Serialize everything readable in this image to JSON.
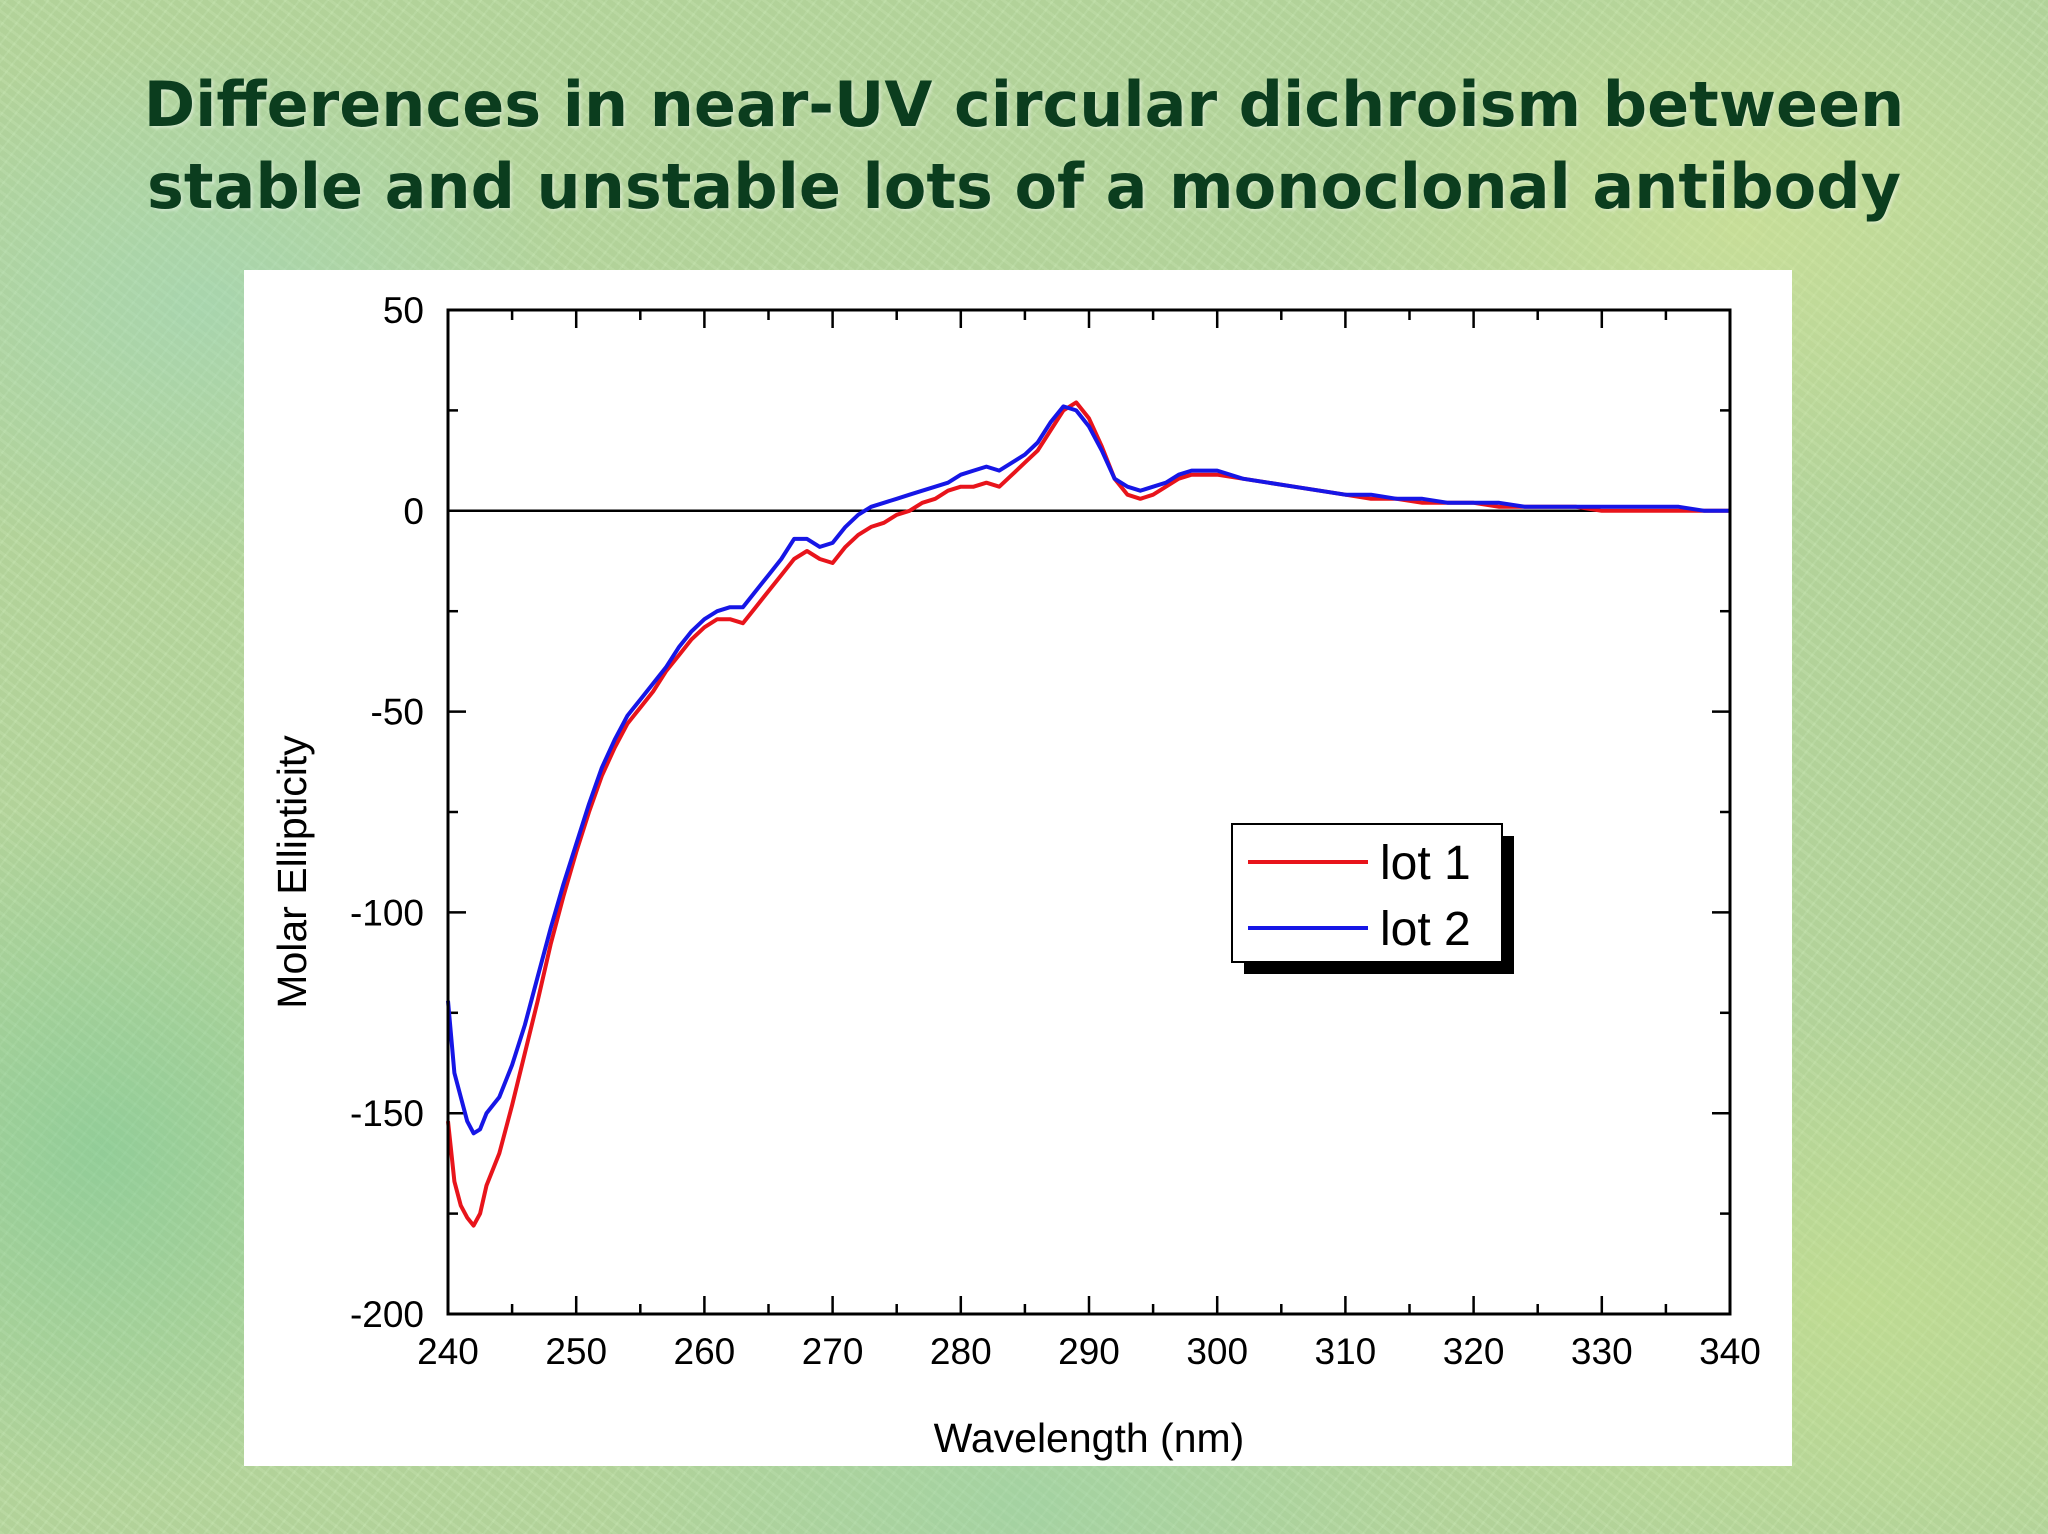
{
  "slide": {
    "title_line1": "Differences in near-UV circular dichroism between",
    "title_line2": "stable and unstable lots of a monoclonal antibody"
  },
  "chart_data": {
    "type": "line",
    "title": "",
    "xlabel": "Wavelength (nm)",
    "ylabel": "Molar Ellipticity",
    "xlim": [
      240,
      340
    ],
    "ylim": [
      -200,
      50
    ],
    "xticks": [
      240,
      250,
      260,
      270,
      280,
      290,
      300,
      310,
      320,
      330,
      340
    ],
    "yticks": [
      -200,
      -150,
      -100,
      -50,
      0,
      50
    ],
    "zero_line": true,
    "grid": false,
    "legend_position": "center-right",
    "series": [
      {
        "name": "lot 1",
        "color": "#e8141b",
        "points": [
          [
            240,
            -152
          ],
          [
            240.5,
            -167
          ],
          [
            241,
            -173
          ],
          [
            241.5,
            -176
          ],
          [
            242,
            -178
          ],
          [
            242.5,
            -175
          ],
          [
            243,
            -168
          ],
          [
            244,
            -160
          ],
          [
            245,
            -148
          ],
          [
            246,
            -135
          ],
          [
            247,
            -122
          ],
          [
            248,
            -108
          ],
          [
            249,
            -96
          ],
          [
            250,
            -85
          ],
          [
            251,
            -75
          ],
          [
            252,
            -66
          ],
          [
            253,
            -59
          ],
          [
            254,
            -53
          ],
          [
            255,
            -49
          ],
          [
            256,
            -45
          ],
          [
            257,
            -40
          ],
          [
            258,
            -36
          ],
          [
            259,
            -32
          ],
          [
            260,
            -29
          ],
          [
            261,
            -27
          ],
          [
            262,
            -27
          ],
          [
            263,
            -28
          ],
          [
            264,
            -24
          ],
          [
            265,
            -20
          ],
          [
            266,
            -16
          ],
          [
            267,
            -12
          ],
          [
            268,
            -10
          ],
          [
            269,
            -12
          ],
          [
            270,
            -13
          ],
          [
            271,
            -9
          ],
          [
            272,
            -6
          ],
          [
            273,
            -4
          ],
          [
            274,
            -3
          ],
          [
            275,
            -1
          ],
          [
            276,
            0
          ],
          [
            277,
            2
          ],
          [
            278,
            3
          ],
          [
            279,
            5
          ],
          [
            280,
            6
          ],
          [
            281,
            6
          ],
          [
            282,
            7
          ],
          [
            283,
            6
          ],
          [
            284,
            9
          ],
          [
            285,
            12
          ],
          [
            286,
            15
          ],
          [
            287,
            20
          ],
          [
            288,
            25
          ],
          [
            289,
            27
          ],
          [
            290,
            23
          ],
          [
            291,
            16
          ],
          [
            292,
            8
          ],
          [
            293,
            4
          ],
          [
            294,
            3
          ],
          [
            295,
            4
          ],
          [
            296,
            6
          ],
          [
            297,
            8
          ],
          [
            298,
            9
          ],
          [
            299,
            9
          ],
          [
            300,
            9
          ],
          [
            302,
            8
          ],
          [
            304,
            7
          ],
          [
            306,
            6
          ],
          [
            308,
            5
          ],
          [
            310,
            4
          ],
          [
            312,
            3
          ],
          [
            314,
            3
          ],
          [
            316,
            2
          ],
          [
            318,
            2
          ],
          [
            320,
            2
          ],
          [
            322,
            1
          ],
          [
            324,
            1
          ],
          [
            326,
            1
          ],
          [
            328,
            1
          ],
          [
            330,
            0
          ],
          [
            332,
            0
          ],
          [
            334,
            0
          ],
          [
            336,
            0
          ],
          [
            338,
            0
          ],
          [
            340,
            0
          ]
        ]
      },
      {
        "name": "lot 2",
        "color": "#1616e6",
        "points": [
          [
            240,
            -122
          ],
          [
            240.5,
            -140
          ],
          [
            241,
            -146
          ],
          [
            241.5,
            -152
          ],
          [
            242,
            -155
          ],
          [
            242.5,
            -154
          ],
          [
            243,
            -150
          ],
          [
            244,
            -146
          ],
          [
            245,
            -138
          ],
          [
            246,
            -128
          ],
          [
            247,
            -116
          ],
          [
            248,
            -104
          ],
          [
            249,
            -93
          ],
          [
            250,
            -83
          ],
          [
            251,
            -73
          ],
          [
            252,
            -64
          ],
          [
            253,
            -57
          ],
          [
            254,
            -51
          ],
          [
            255,
            -47
          ],
          [
            256,
            -43
          ],
          [
            257,
            -39
          ],
          [
            258,
            -34
          ],
          [
            259,
            -30
          ],
          [
            260,
            -27
          ],
          [
            261,
            -25
          ],
          [
            262,
            -24
          ],
          [
            263,
            -24
          ],
          [
            264,
            -20
          ],
          [
            265,
            -16
          ],
          [
            266,
            -12
          ],
          [
            267,
            -7
          ],
          [
            268,
            -7
          ],
          [
            269,
            -9
          ],
          [
            270,
            -8
          ],
          [
            271,
            -4
          ],
          [
            272,
            -1
          ],
          [
            273,
            1
          ],
          [
            274,
            2
          ],
          [
            275,
            3
          ],
          [
            276,
            4
          ],
          [
            277,
            5
          ],
          [
            278,
            6
          ],
          [
            279,
            7
          ],
          [
            280,
            9
          ],
          [
            281,
            10
          ],
          [
            282,
            11
          ],
          [
            283,
            10
          ],
          [
            284,
            12
          ],
          [
            285,
            14
          ],
          [
            286,
            17
          ],
          [
            287,
            22
          ],
          [
            288,
            26
          ],
          [
            289,
            25
          ],
          [
            290,
            21
          ],
          [
            291,
            15
          ],
          [
            292,
            8
          ],
          [
            293,
            6
          ],
          [
            294,
            5
          ],
          [
            295,
            6
          ],
          [
            296,
            7
          ],
          [
            297,
            9
          ],
          [
            298,
            10
          ],
          [
            299,
            10
          ],
          [
            300,
            10
          ],
          [
            302,
            8
          ],
          [
            304,
            7
          ],
          [
            306,
            6
          ],
          [
            308,
            5
          ],
          [
            310,
            4
          ],
          [
            312,
            4
          ],
          [
            314,
            3
          ],
          [
            316,
            3
          ],
          [
            318,
            2
          ],
          [
            320,
            2
          ],
          [
            322,
            2
          ],
          [
            324,
            1
          ],
          [
            326,
            1
          ],
          [
            328,
            1
          ],
          [
            330,
            1
          ],
          [
            332,
            1
          ],
          [
            334,
            1
          ],
          [
            336,
            1
          ],
          [
            338,
            0
          ],
          [
            340,
            0
          ]
        ]
      }
    ]
  }
}
